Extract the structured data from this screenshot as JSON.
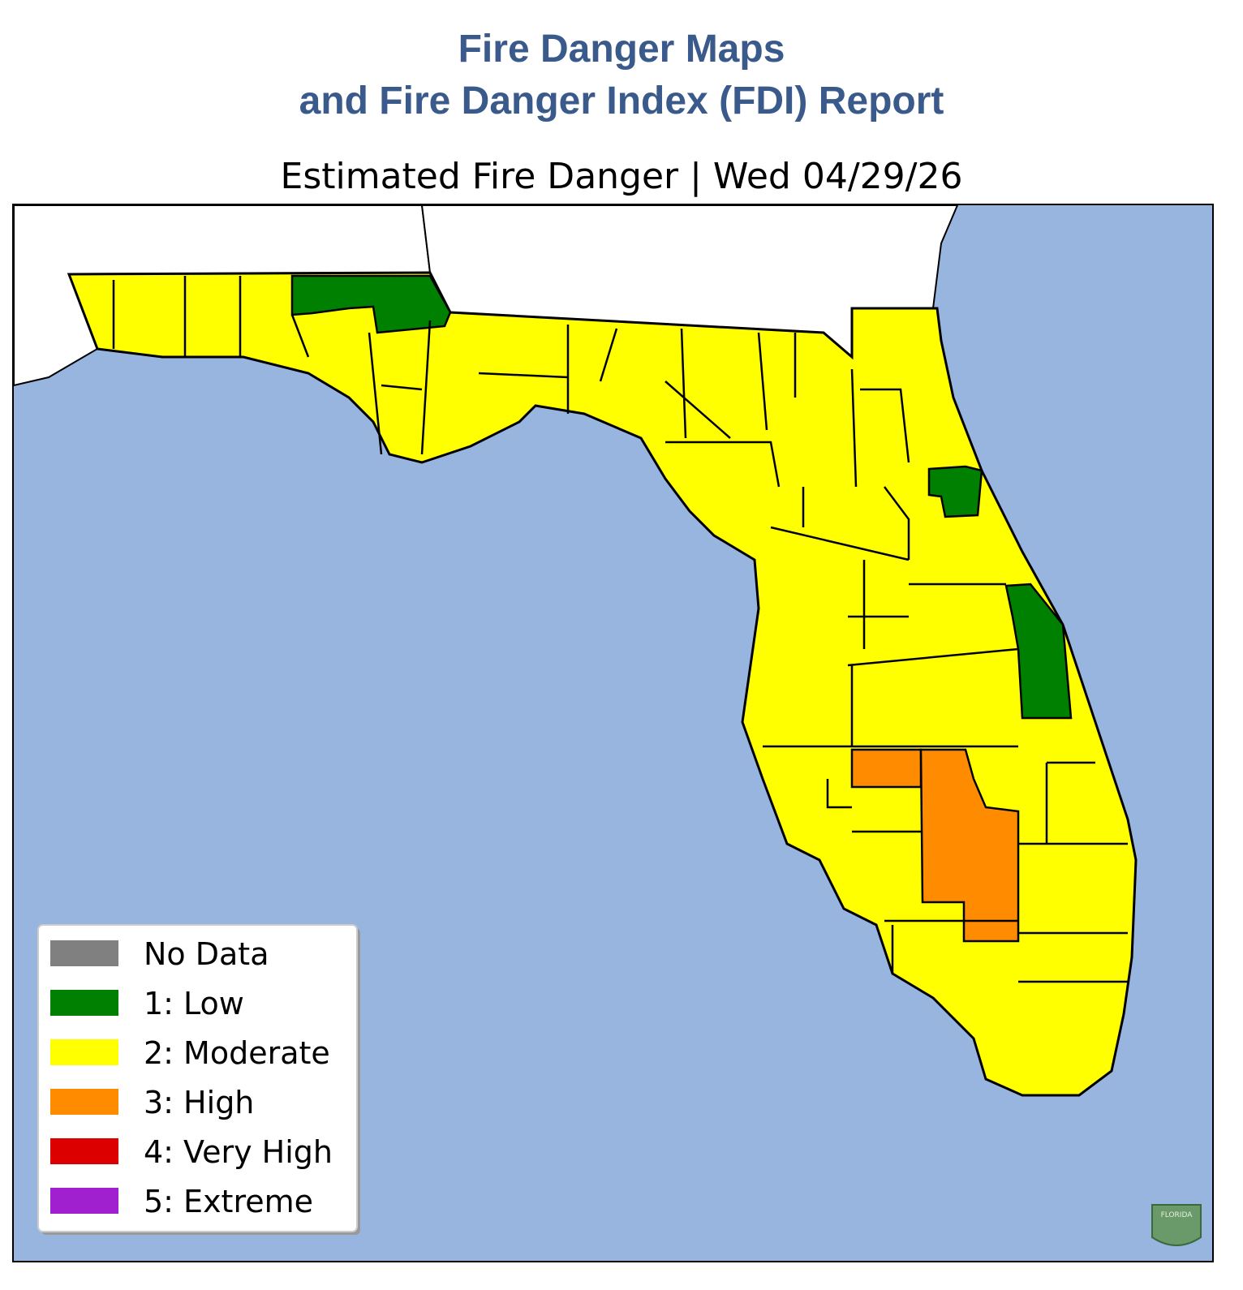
{
  "header": {
    "title_line1": "Fire Danger Maps",
    "title_line2": "and Fire Danger Index (FDI) Report"
  },
  "map": {
    "subtitle": "Estimated Fire Danger | Wed 04/29/26",
    "legend": [
      {
        "label": "No Data",
        "color": "#808080"
      },
      {
        "label": "1: Low",
        "color": "#008000"
      },
      {
        "label": "2: Moderate",
        "color": "#ffff00"
      },
      {
        "label": "3: High",
        "color": "#ff8c00"
      },
      {
        "label": "4: Very High",
        "color": "#dd0000"
      },
      {
        "label": "5: Extreme",
        "color": "#a020d0"
      }
    ],
    "logo": "FLORIDA"
  }
}
